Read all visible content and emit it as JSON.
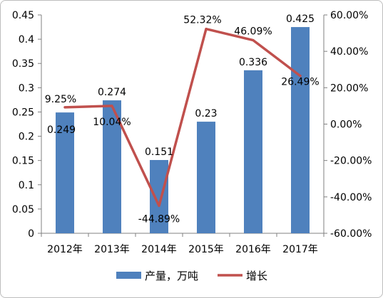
{
  "chart_data": {
    "type": "bar+line",
    "categories": [
      "2012年",
      "2013年",
      "2014年",
      "2015年",
      "2016年",
      "2017年"
    ],
    "series": [
      {
        "name": "产量，万吨",
        "type": "bar",
        "axis": "left",
        "color": "#4f81bd",
        "values": [
          0.249,
          0.274,
          0.151,
          0.23,
          0.336,
          0.425
        ],
        "labels": [
          "0.249",
          "0.274",
          "0.151",
          "0.23",
          "0.336",
          "0.425"
        ]
      },
      {
        "name": "增长",
        "type": "line",
        "axis": "right",
        "color": "#c0504d",
        "values": [
          9.25,
          10.04,
          -44.89,
          52.32,
          46.09,
          26.49
        ],
        "labels": [
          "9.25%",
          "10.04%",
          "-44.89%",
          "52.32%",
          "46.09%",
          "26.49%"
        ]
      }
    ],
    "left_axis": {
      "ylim": [
        0,
        0.45
      ],
      "ticks": [
        "0",
        "0.05",
        "0.1",
        "0.15",
        "0.2",
        "0.25",
        "0.3",
        "0.35",
        "0.4",
        "0.45"
      ]
    },
    "right_axis": {
      "ylim": [
        -60,
        60
      ],
      "ticks": [
        "-60.00%",
        "-40.00%",
        "-20.00%",
        "0.00%",
        "20.00%",
        "40.00%",
        "60.00%"
      ]
    },
    "legend_position": "bottom",
    "grid": false
  }
}
